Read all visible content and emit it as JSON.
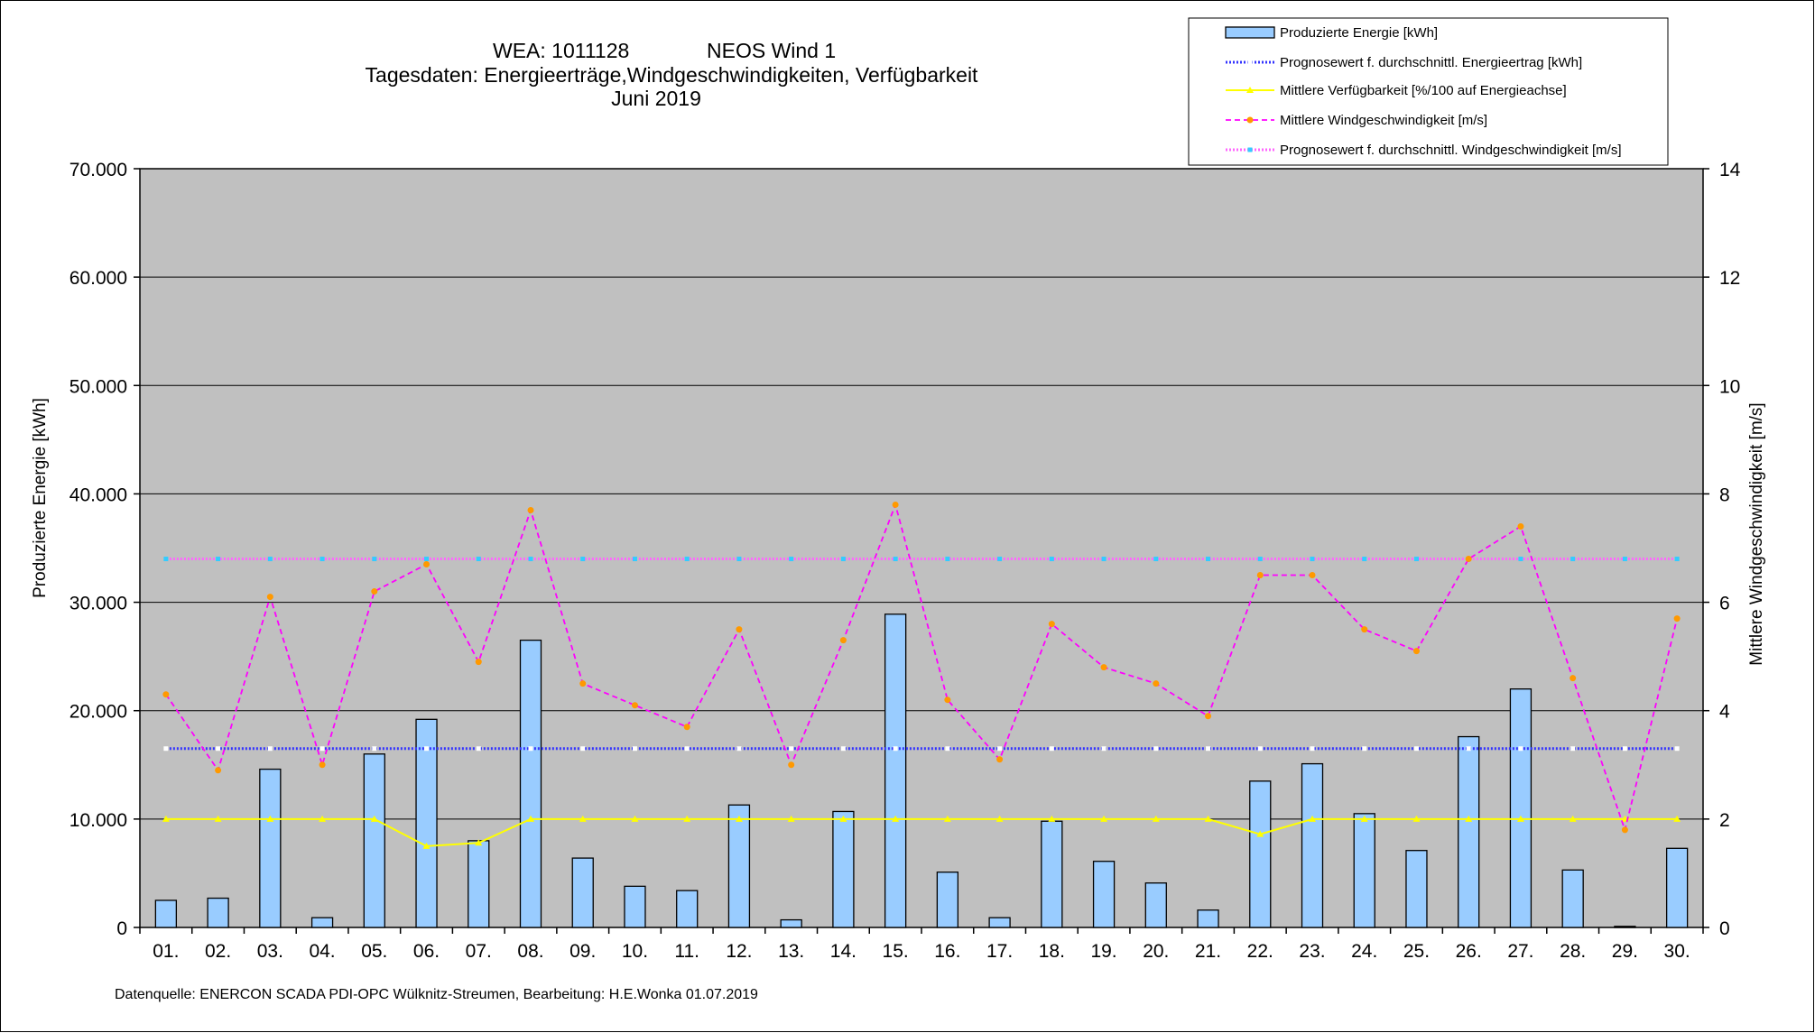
{
  "header": {
    "line1_left": "WEA: 1011128",
    "line1_right": "NEOS Wind 1",
    "line2": "Tagesdaten:  Energieerträge,Windgeschwindigkeiten,  Verfügbarkeit",
    "line3": "Juni 2019"
  },
  "footer": "Datenquelle:  ENERCON  SCADA PDI-OPC Wülknitz-Streumen,    Bearbeitung:  H.E.Wonka   01.07.2019",
  "colors": {
    "plot_bg": "#c0c0c0",
    "bar_fill": "#99ccff",
    "energy_forecast": "#3333ff",
    "availability": "#ffff00",
    "wind": "#ff00ff",
    "wind_marker": "#ff9900",
    "wind_forecast": "#ff66ff",
    "wind_forecast_marker": "#33ccff"
  },
  "chart_data": {
    "type": "bar",
    "categories": [
      "01.",
      "02.",
      "03.",
      "04.",
      "05.",
      "06.",
      "07.",
      "08.",
      "09.",
      "10.",
      "11.",
      "12.",
      "13.",
      "14.",
      "15.",
      "16.",
      "17.",
      "18.",
      "19.",
      "20.",
      "21.",
      "22.",
      "23.",
      "24.",
      "25.",
      "26.",
      "27.",
      "28.",
      "29.",
      "30."
    ],
    "ylabel": "Produzierte Energie [kWh]",
    "y2label": "Mittlere Windgeschwindigkeit [m/s]",
    "ylim": [
      0,
      70000
    ],
    "y2lim": [
      0,
      14
    ],
    "yticks": [
      "0",
      "10.000",
      "20.000",
      "30.000",
      "40.000",
      "50.000",
      "60.000",
      "70.000"
    ],
    "y2ticks": [
      "0",
      "2",
      "4",
      "6",
      "8",
      "10",
      "12",
      "14"
    ],
    "grid": true,
    "legend_position": "top-right",
    "series": [
      {
        "name": "Produzierte Energie [kWh]",
        "type": "bar",
        "axis": "left",
        "values": [
          2500,
          2700,
          14600,
          900,
          16000,
          19200,
          8000,
          26500,
          6400,
          3800,
          3400,
          11300,
          700,
          10700,
          28900,
          5100,
          900,
          9800,
          6100,
          4100,
          1600,
          13500,
          15100,
          10500,
          7100,
          17600,
          22000,
          5300,
          100,
          7300
        ]
      },
      {
        "name": "Prognosewert f. durchschnittl. Energieertrag  [kWh]",
        "type": "line",
        "axis": "left",
        "values": [
          16500,
          16500,
          16500,
          16500,
          16500,
          16500,
          16500,
          16500,
          16500,
          16500,
          16500,
          16500,
          16500,
          16500,
          16500,
          16500,
          16500,
          16500,
          16500,
          16500,
          16500,
          16500,
          16500,
          16500,
          16500,
          16500,
          16500,
          16500,
          16500,
          16500
        ]
      },
      {
        "name": "Mittlere Verfügbarkeit [%/100 auf Energieachse]",
        "type": "line",
        "axis": "left",
        "values": [
          10000,
          10000,
          10000,
          10000,
          10000,
          7500,
          7800,
          10000,
          10000,
          10000,
          10000,
          10000,
          10000,
          10000,
          10000,
          10000,
          10000,
          10000,
          10000,
          10000,
          10000,
          8600,
          10000,
          10000,
          10000,
          10000,
          10000,
          10000,
          10000,
          10000
        ]
      },
      {
        "name": "Mittlere Windgeschwindigkeit [m/s]",
        "type": "line",
        "axis": "right",
        "values": [
          4.3,
          2.9,
          6.1,
          3.0,
          6.2,
          6.7,
          4.9,
          7.7,
          4.5,
          4.1,
          3.7,
          5.5,
          3.0,
          5.3,
          7.8,
          4.2,
          3.1,
          5.6,
          4.8,
          4.5,
          3.9,
          6.5,
          6.5,
          5.5,
          5.1,
          6.8,
          7.4,
          4.6,
          1.8,
          5.7
        ]
      },
      {
        "name": "Prognosewert f. durchschnittl. Windgeschwindigkeit [m/s]",
        "type": "line",
        "axis": "right",
        "values": [
          6.8,
          6.8,
          6.8,
          6.8,
          6.8,
          6.8,
          6.8,
          6.8,
          6.8,
          6.8,
          6.8,
          6.8,
          6.8,
          6.8,
          6.8,
          6.8,
          6.8,
          6.8,
          6.8,
          6.8,
          6.8,
          6.8,
          6.8,
          6.8,
          6.8,
          6.8,
          6.8,
          6.8,
          6.8,
          6.8
        ]
      }
    ]
  }
}
